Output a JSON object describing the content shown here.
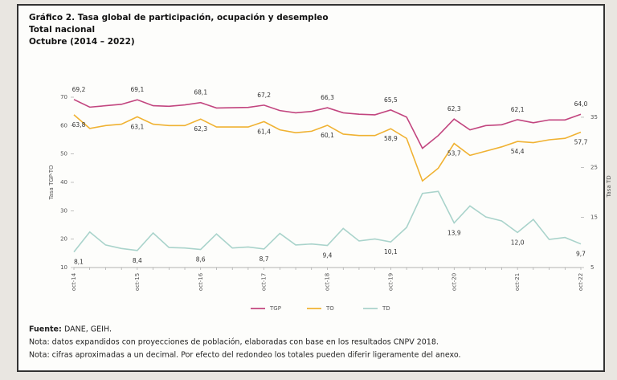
{
  "chart_data": {
    "type": "line",
    "title": "Gráfico 2. Tasa global de participación, ocupación y desempleo",
    "subtitle": "Total nacional",
    "period": "Octubre  (2014  – 2022)",
    "ylabel": "Tasa TGP-TO",
    "y2label": "Tasa TD",
    "categories": [
      "oct-14",
      null,
      null,
      null,
      "oct-15",
      null,
      null,
      null,
      "oct-16",
      null,
      null,
      null,
      "oct-17",
      null,
      null,
      null,
      "oct-18",
      null,
      null,
      null,
      "oct-19",
      null,
      null,
      null,
      "oct-20",
      null,
      null,
      null,
      "oct-21",
      null,
      null,
      null,
      "oct-22"
    ],
    "ylim": [
      10,
      70
    ],
    "yticks": [
      10,
      20,
      30,
      40,
      50,
      60,
      70
    ],
    "y2lim": [
      5,
      39
    ],
    "y2ticks": [
      5,
      15,
      25,
      35
    ],
    "legend": "bottom",
    "series": [
      {
        "name": "TGP",
        "color": "#c2457f",
        "values": [
          69.2,
          66.5,
          67.0,
          67.5,
          69.1,
          67.0,
          66.8,
          67.3,
          68.1,
          66.2,
          66.3,
          66.4,
          67.2,
          65.3,
          64.5,
          65.0,
          66.3,
          64.5,
          64.0,
          63.8,
          65.5,
          63.0,
          52.0,
          56.5,
          62.3,
          58.5,
          60.0,
          60.3,
          62.1,
          61.0,
          62.0,
          62.0,
          64.0
        ],
        "value_labels": [
          "69,2",
          null,
          null,
          null,
          "69,1",
          null,
          null,
          null,
          "68,1",
          null,
          null,
          null,
          "67,2",
          null,
          null,
          null,
          "66,3",
          null,
          null,
          null,
          "65,5",
          null,
          null,
          null,
          "62,3",
          null,
          null,
          null,
          "62,1",
          null,
          null,
          null,
          "64,0"
        ]
      },
      {
        "name": "TO",
        "color": "#f0b232",
        "values": [
          63.8,
          59.0,
          60.0,
          60.5,
          63.1,
          60.5,
          60.0,
          60.0,
          62.3,
          59.5,
          59.5,
          59.5,
          61.4,
          58.5,
          57.5,
          58.0,
          60.1,
          57.0,
          56.5,
          56.5,
          58.9,
          55.5,
          40.5,
          45.0,
          53.7,
          49.5,
          51.0,
          52.5,
          54.4,
          54.0,
          55.0,
          55.5,
          57.7
        ],
        "value_labels": [
          "63,8",
          null,
          null,
          null,
          "63,1",
          null,
          null,
          null,
          "62,3",
          null,
          null,
          null,
          "61,4",
          null,
          null,
          null,
          "60,1",
          null,
          null,
          null,
          "58,9",
          null,
          null,
          null,
          "53,7",
          null,
          null,
          null,
          "54,4",
          null,
          null,
          null,
          "57,7"
        ]
      },
      {
        "name": "TD",
        "color": "#a9d3cb",
        "axis": "y2",
        "values": [
          8.1,
          12.1,
          9.5,
          8.8,
          8.4,
          11.9,
          9.0,
          8.9,
          8.6,
          11.7,
          8.9,
          9.1,
          8.7,
          11.8,
          9.5,
          9.7,
          9.4,
          12.8,
          10.3,
          10.7,
          10.1,
          13.0,
          19.8,
          20.2,
          13.9,
          17.3,
          15.1,
          14.3,
          12.0,
          14.6,
          10.6,
          11.0,
          9.7
        ],
        "value_labels": [
          "8,1",
          null,
          null,
          null,
          "8,4",
          null,
          null,
          null,
          "8,6",
          null,
          null,
          null,
          "8,7",
          null,
          null,
          null,
          "9,4",
          null,
          null,
          null,
          "10,1",
          null,
          null,
          null,
          "13,9",
          null,
          null,
          null,
          "12,0",
          null,
          null,
          null,
          "9,7"
        ]
      }
    ]
  },
  "footer": {
    "source_label": "Fuente:",
    "source": "DANE, GEIH.",
    "notes": [
      "Nota: datos expandidos con proyecciones de población, elaboradas con base en los resultados CNPV 2018.",
      "Nota: cifras aproximadas a un decimal. Por efecto del redondeo los totales pueden diferir ligeramente del anexo."
    ]
  }
}
